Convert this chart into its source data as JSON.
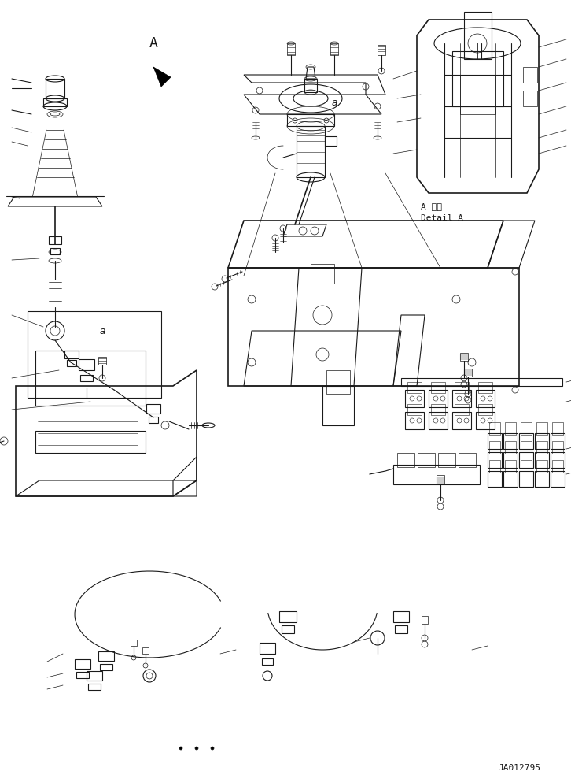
{
  "background_color": "#ffffff",
  "line_color": "#1a1a1a",
  "fig_width": 7.26,
  "fig_height": 9.89,
  "dpi": 100,
  "watermark": "JA012795",
  "detail_label_jp": "A 詳細",
  "detail_label_en": "Detail A",
  "label_a": "A",
  "label_a_small1": "a",
  "label_a_small2": "a"
}
